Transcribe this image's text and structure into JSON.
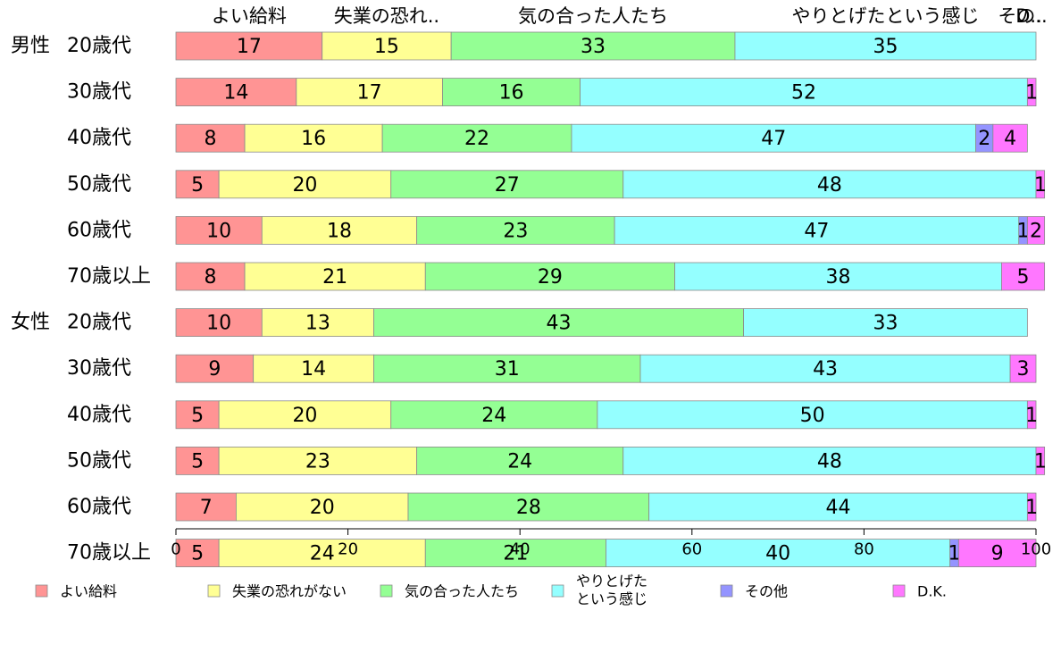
{
  "chart_data": {
    "type": "bar",
    "orientation": "horizontal",
    "stacked": true,
    "xlim": [
      0,
      100
    ],
    "x_ticks": [
      "0",
      "20",
      "40",
      "60",
      "80",
      "100"
    ],
    "top_labels": [
      "よい給料",
      "失業の恐れ..",
      "気の合った人たち",
      "やりとげたという感じ",
      "その..",
      "D.."
    ],
    "rows": [
      {
        "group": "男性",
        "label": "20歳代",
        "values": [
          17,
          15,
          33,
          35,
          0,
          0
        ],
        "value_labels": [
          "17",
          "15",
          "33",
          "35",
          "",
          ""
        ]
      },
      {
        "group": "",
        "label": "30歳代",
        "values": [
          14,
          17,
          16,
          52,
          0,
          1
        ],
        "value_labels": [
          "14",
          "17",
          "16",
          "52",
          "",
          "1"
        ]
      },
      {
        "group": "",
        "label": "40歳代",
        "values": [
          8,
          16,
          22,
          47,
          2,
          4
        ],
        "value_labels": [
          "8",
          "16",
          "22",
          "47",
          "2",
          "4"
        ]
      },
      {
        "group": "",
        "label": "50歳代",
        "values": [
          5,
          20,
          27,
          48,
          0,
          1
        ],
        "value_labels": [
          "5",
          "20",
          "27",
          "48",
          "",
          "1"
        ]
      },
      {
        "group": "",
        "label": "60歳代",
        "values": [
          10,
          18,
          23,
          47,
          1,
          2
        ],
        "value_labels": [
          "10",
          "18",
          "23",
          "47",
          "1",
          "2"
        ]
      },
      {
        "group": "",
        "label": "70歳以上",
        "values": [
          8,
          21,
          29,
          38,
          0,
          5
        ],
        "value_labels": [
          "8",
          "21",
          "29",
          "38",
          "",
          "5"
        ]
      },
      {
        "group": "女性",
        "label": "20歳代",
        "values": [
          10,
          13,
          43,
          33,
          0,
          0
        ],
        "value_labels": [
          "10",
          "13",
          "43",
          "33",
          "",
          ""
        ]
      },
      {
        "group": "",
        "label": "30歳代",
        "values": [
          9,
          14,
          31,
          43,
          0,
          3
        ],
        "value_labels": [
          "9",
          "14",
          "31",
          "43",
          "",
          "3"
        ]
      },
      {
        "group": "",
        "label": "40歳代",
        "values": [
          5,
          20,
          24,
          50,
          0,
          1
        ],
        "value_labels": [
          "5",
          "20",
          "24",
          "50",
          "",
          "1"
        ]
      },
      {
        "group": "",
        "label": "50歳代",
        "values": [
          5,
          23,
          24,
          48,
          0,
          1
        ],
        "value_labels": [
          "5",
          "23",
          "24",
          "48",
          "",
          "1"
        ]
      },
      {
        "group": "",
        "label": "60歳代",
        "values": [
          7,
          20,
          28,
          44,
          0,
          1
        ],
        "value_labels": [
          "7",
          "20",
          "28",
          "44",
          "",
          "1"
        ]
      },
      {
        "group": "",
        "label": "70歳以上",
        "values": [
          5,
          24,
          21,
          40,
          1,
          9
        ],
        "value_labels": [
          "5",
          "24",
          "21",
          "40",
          "1",
          "9"
        ]
      }
    ],
    "series": [
      {
        "name": "よい給料",
        "color": "#ff9494"
      },
      {
        "name": "失業の恐れがない",
        "color": "#ffff94"
      },
      {
        "name": "気の合った人たち",
        "color": "#94ff94"
      },
      {
        "name": "やりとげた\nという感じ",
        "color": "#94ffff"
      },
      {
        "name": "その他",
        "color": "#9494ff"
      },
      {
        "name": "D.K.",
        "color": "#ff77ff"
      }
    ],
    "legend_position": "bottom",
    "grid": false
  }
}
